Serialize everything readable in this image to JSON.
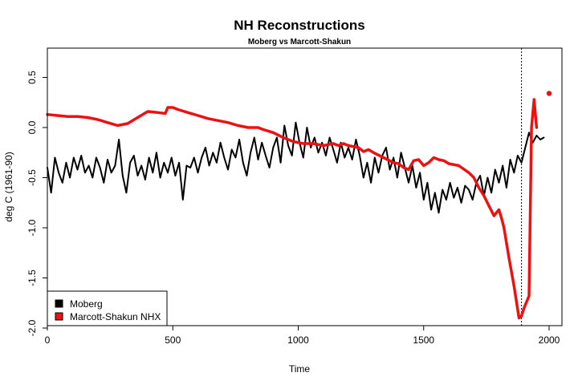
{
  "chart_data": {
    "type": "line",
    "title": "NH Reconstructions",
    "subtitle": "Moberg vs Marcott-Shakun",
    "xlabel": "Time",
    "ylabel": "deg C (1961-90)",
    "xlim": [
      0,
      2000
    ],
    "ylim": [
      -2.0,
      0.8
    ],
    "x_ticks": [
      0,
      500,
      1000,
      1500,
      2000
    ],
    "x_tick_labels": [
      "0",
      "500",
      "1000",
      "1500",
      "2000"
    ],
    "y_ticks": [
      -2.0,
      -1.5,
      -1.0,
      -0.5,
      0.0,
      0.5
    ],
    "y_tick_labels": [
      "-2.0",
      "-1.5",
      "-1.0",
      "-0.5",
      "0.0",
      "0.5"
    ],
    "vline_x": 1890,
    "legend_position": "bottom-left",
    "legend": [
      {
        "label": "Moberg",
        "color": "#000000"
      },
      {
        "label": "Marcott-Shakun NHX",
        "color": "#ee1111"
      }
    ],
    "series": [
      {
        "name": "Moberg",
        "color": "#000000",
        "x": [
          0,
          15,
          30,
          45,
          60,
          75,
          90,
          105,
          120,
          135,
          150,
          165,
          180,
          195,
          210,
          225,
          240,
          255,
          270,
          285,
          300,
          315,
          330,
          345,
          360,
          375,
          390,
          405,
          420,
          435,
          450,
          465,
          480,
          495,
          510,
          525,
          540,
          555,
          570,
          585,
          600,
          615,
          630,
          645,
          660,
          675,
          690,
          705,
          720,
          735,
          750,
          765,
          780,
          795,
          810,
          825,
          840,
          855,
          870,
          885,
          900,
          915,
          930,
          945,
          960,
          975,
          990,
          1005,
          1020,
          1035,
          1050,
          1065,
          1080,
          1095,
          1110,
          1125,
          1140,
          1155,
          1170,
          1185,
          1200,
          1215,
          1230,
          1245,
          1260,
          1275,
          1290,
          1305,
          1320,
          1335,
          1350,
          1365,
          1380,
          1395,
          1410,
          1425,
          1440,
          1455,
          1470,
          1485,
          1500,
          1515,
          1530,
          1545,
          1560,
          1575,
          1590,
          1605,
          1620,
          1635,
          1650,
          1665,
          1680,
          1695,
          1710,
          1725,
          1740,
          1755,
          1770,
          1785,
          1800,
          1815,
          1830,
          1845,
          1860,
          1875,
          1890,
          1905,
          1920,
          1935,
          1950,
          1965,
          1979
        ],
        "values": [
          -0.4,
          -0.65,
          -0.3,
          -0.45,
          -0.55,
          -0.35,
          -0.5,
          -0.3,
          -0.42,
          -0.28,
          -0.45,
          -0.38,
          -0.5,
          -0.3,
          -0.4,
          -0.55,
          -0.32,
          -0.45,
          -0.38,
          -0.12,
          -0.48,
          -0.65,
          -0.35,
          -0.28,
          -0.48,
          -0.38,
          -0.52,
          -0.3,
          -0.45,
          -0.25,
          -0.5,
          -0.35,
          -0.45,
          -0.3,
          -0.48,
          -0.35,
          -0.72,
          -0.38,
          -0.4,
          -0.3,
          -0.45,
          -0.3,
          -0.2,
          -0.38,
          -0.25,
          -0.35,
          -0.15,
          -0.3,
          -0.42,
          -0.22,
          -0.3,
          -0.12,
          -0.35,
          -0.48,
          -0.25,
          -0.1,
          -0.32,
          -0.15,
          -0.28,
          -0.4,
          -0.2,
          -0.1,
          -0.35,
          0.02,
          -0.18,
          -0.28,
          0.05,
          -0.15,
          -0.3,
          0.0,
          -0.2,
          -0.1,
          -0.25,
          -0.15,
          -0.28,
          -0.1,
          -0.22,
          -0.35,
          -0.15,
          -0.3,
          -0.2,
          -0.32,
          -0.12,
          -0.28,
          -0.5,
          -0.35,
          -0.55,
          -0.3,
          -0.45,
          -0.28,
          -0.2,
          -0.42,
          -0.3,
          -0.5,
          -0.25,
          -0.4,
          -0.55,
          -0.38,
          -0.6,
          -0.45,
          -0.72,
          -0.55,
          -0.82,
          -0.65,
          -0.85,
          -0.62,
          -0.72,
          -0.55,
          -0.7,
          -0.6,
          -0.75,
          -0.58,
          -0.62,
          -0.72,
          -0.55,
          -0.48,
          -0.68,
          -0.5,
          -0.65,
          -0.42,
          -0.55,
          -0.38,
          -0.6,
          -0.32,
          -0.45,
          -0.28,
          -0.35,
          -0.2,
          -0.05,
          -0.15,
          -0.08,
          -0.12,
          -0.1
        ]
      },
      {
        "name": "Marcott-Shakun NHX",
        "color": "#ee1111",
        "x": [
          0,
          40,
          80,
          120,
          160,
          200,
          240,
          280,
          320,
          360,
          400,
          440,
          470,
          480,
          500,
          520,
          560,
          600,
          640,
          680,
          720,
          760,
          800,
          840,
          860,
          900,
          940,
          980,
          1020,
          1060,
          1100,
          1140,
          1160,
          1180,
          1200,
          1240,
          1260,
          1280,
          1300,
          1340,
          1380,
          1400,
          1420,
          1440,
          1460,
          1480,
          1500,
          1520,
          1540,
          1560,
          1580,
          1600,
          1640,
          1680,
          1700,
          1720,
          1740,
          1760,
          1780,
          1800,
          1810,
          1820,
          1840,
          1860,
          1880,
          1890,
          1900,
          1920,
          1930,
          1940,
          1950
        ],
        "values": [
          0.13,
          0.12,
          0.11,
          0.11,
          0.1,
          0.08,
          0.05,
          0.02,
          0.04,
          0.1,
          0.16,
          0.15,
          0.14,
          0.2,
          0.2,
          0.18,
          0.15,
          0.12,
          0.09,
          0.07,
          0.05,
          0.02,
          0.0,
          0.0,
          -0.02,
          -0.05,
          -0.1,
          -0.14,
          -0.16,
          -0.16,
          -0.18,
          -0.16,
          -0.18,
          -0.16,
          -0.18,
          -0.2,
          -0.24,
          -0.22,
          -0.25,
          -0.3,
          -0.35,
          -0.36,
          -0.4,
          -0.42,
          -0.33,
          -0.32,
          -0.38,
          -0.35,
          -0.3,
          -0.32,
          -0.33,
          -0.36,
          -0.38,
          -0.45,
          -0.5,
          -0.6,
          -0.68,
          -0.78,
          -0.88,
          -0.82,
          -0.9,
          -1.0,
          -1.3,
          -1.58,
          -1.9,
          -1.88,
          -1.8,
          -1.68,
          0.0,
          0.28,
          0.0
        ]
      }
    ],
    "points": [
      {
        "name": "marcott-last-point",
        "series": "Marcott-Shakun NHX",
        "x": 2000,
        "y": 0.34
      }
    ]
  }
}
